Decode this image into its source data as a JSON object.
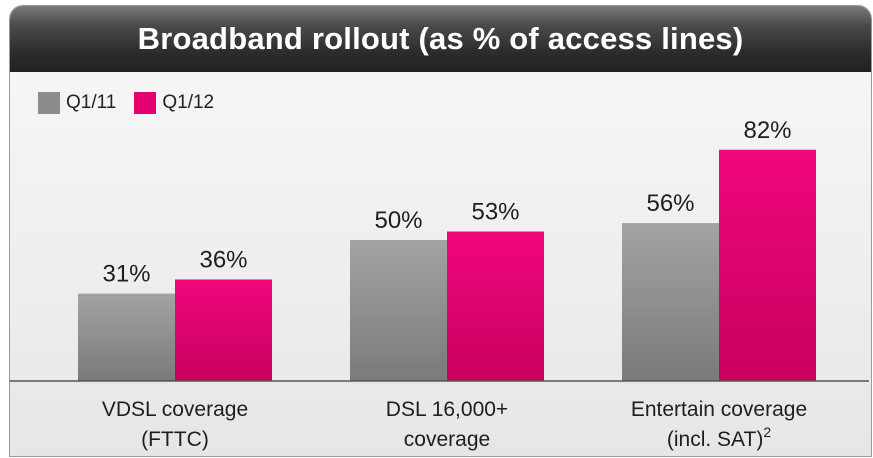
{
  "title": "Broadband rollout (as % of access lines)",
  "colors": {
    "Q1/11": "#8c8c8c",
    "Q1/12": "#e5006f"
  },
  "chart_data": {
    "type": "bar",
    "title": "Broadband rollout (as % of access lines)",
    "categories": [
      [
        "VDSL coverage",
        "(FTTC)"
      ],
      [
        "DSL 16,000+",
        "coverage"
      ],
      [
        "Entertain coverage",
        "(incl. SAT)",
        "2"
      ]
    ],
    "series": [
      {
        "name": "Q1/11",
        "values": [
          31,
          50,
          56
        ],
        "labels": [
          "31%",
          "50%",
          "56%"
        ]
      },
      {
        "name": "Q1/12",
        "values": [
          36,
          53,
          82
        ],
        "labels": [
          "36%",
          "53%",
          "82%"
        ]
      }
    ],
    "ylim": [
      0,
      100
    ],
    "legend": "top-left",
    "grid": false
  }
}
